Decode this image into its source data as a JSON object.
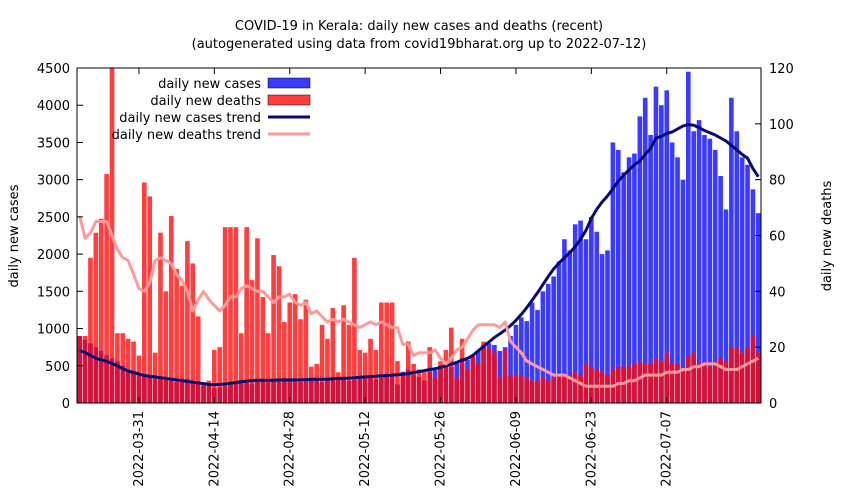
{
  "title_line1": "COVID-19 in Kerala: daily new cases and deaths (recent)",
  "title_line2": "(autogenerated using data from covid19bharat.org up to 2022-07-12)",
  "legend": {
    "cases": "daily new cases",
    "deaths": "daily new deaths",
    "cases_trend": "daily new cases trend",
    "deaths_trend": "daily new deaths trend"
  },
  "colors": {
    "cases_bar": "#3b3bff",
    "deaths_bar": "#ff3f3f",
    "overlap": "#d0143c",
    "cases_trend": "#0a0a6e",
    "deaths_trend": "#ff9a9a"
  },
  "chart_data": {
    "type": "bar",
    "title": "COVID-19 in Kerala: daily new cases and deaths (recent)",
    "subtitle": "(autogenerated using data from covid19bharat.org up to 2022-07-12)",
    "ylabel": "daily new cases",
    "y2label": "daily new deaths",
    "ylim": [
      0,
      4500
    ],
    "y2lim": [
      0,
      120
    ],
    "yticks": [
      0,
      500,
      1000,
      1500,
      2000,
      2500,
      3000,
      3500,
      4000,
      4500
    ],
    "y2ticks": [
      0,
      20,
      40,
      60,
      80,
      100,
      120
    ],
    "start_date": "2022-03-20",
    "xticks": [
      "2022-03-31",
      "2022-04-14",
      "2022-04-28",
      "2022-05-12",
      "2022-05-26",
      "2022-06-09",
      "2022-06-23",
      "2022-07-07"
    ],
    "legend_position": "top-left",
    "grid": false,
    "series": [
      {
        "name": "daily new cases",
        "axis": "left",
        "type": "bar",
        "values": [
          900,
          850,
          800,
          750,
          700,
          640,
          600,
          560,
          500,
          420,
          400,
          380,
          360,
          350,
          340,
          330,
          320,
          300,
          280,
          330,
          320,
          300,
          280,
          260,
          240,
          200,
          210,
          230,
          250,
          260,
          280,
          300,
          260,
          300,
          320,
          280,
          300,
          330,
          300,
          290,
          310,
          280,
          300,
          320,
          330,
          280,
          300,
          310,
          340,
          320,
          300,
          310,
          330,
          360,
          340,
          320,
          350,
          380,
          390,
          250,
          420,
          450,
          380,
          350,
          300,
          420,
          440,
          500,
          540,
          480,
          560,
          600,
          580,
          620,
          700,
          780,
          800,
          780,
          700,
          750,
          900,
          1050,
          1150,
          1100,
          1350,
          1250,
          1500,
          1600,
          1700,
          1900,
          2200,
          2050,
          2400,
          2450,
          2200,
          2500,
          2300,
          2000,
          2050,
          3500,
          3400,
          3100,
          3300,
          3350,
          3850,
          4100,
          3600,
          4250,
          4000,
          4200,
          3500,
          3300,
          3000,
          4450,
          3650,
          3800,
          3600,
          3550,
          3400,
          3050,
          2600,
          4100,
          3650,
          3300,
          3200,
          2870,
          2550
        ]
      },
      {
        "name": "daily new deaths",
        "axis": "right",
        "type": "bar",
        "values": [
          24,
          24,
          52,
          61,
          66,
          82,
          120,
          25,
          25,
          23,
          22,
          17,
          79,
          74,
          18,
          61,
          40,
          67,
          48,
          42,
          58,
          50,
          31,
          6,
          8,
          19,
          20,
          63,
          63,
          63,
          25,
          63,
          44,
          59,
          38,
          25,
          53,
          49,
          29,
          36,
          39,
          30,
          37,
          13,
          14,
          28,
          23,
          34,
          11,
          35,
          28,
          52,
          19,
          18,
          23,
          19,
          36,
          36,
          36,
          15,
          10,
          22,
          14,
          12,
          11,
          20,
          9,
          15,
          19,
          27,
          9,
          23,
          12,
          17,
          14,
          22,
          20,
          18,
          9,
          19,
          10,
          10,
          10,
          9,
          8,
          8,
          9,
          8,
          9,
          10,
          10,
          10,
          11,
          10,
          14,
          13,
          12,
          11,
          10,
          12,
          13,
          13,
          13,
          14,
          15,
          14,
          14,
          16,
          15,
          18,
          14,
          14,
          12,
          17,
          18,
          14,
          15,
          13,
          15,
          16,
          15,
          20,
          20,
          18,
          20,
          24,
          18
        ]
      },
      {
        "name": "daily new cases trend",
        "axis": "left",
        "type": "line",
        "values": [
          700,
          680,
          640,
          600,
          580,
          560,
          530,
          500,
          460,
          430,
          410,
          390,
          370,
          360,
          350,
          340,
          330,
          320,
          310,
          300,
          290,
          280,
          270,
          260,
          250,
          245,
          250,
          255,
          265,
          275,
          285,
          295,
          300,
          305,
          305,
          305,
          305,
          310,
          310,
          310,
          310,
          310,
          315,
          320,
          320,
          320,
          320,
          325,
          330,
          330,
          335,
          340,
          345,
          350,
          355,
          360,
          365,
          370,
          375,
          380,
          385,
          395,
          410,
          420,
          435,
          450,
          460,
          480,
          500,
          520,
          545,
          575,
          600,
          640,
          700,
          760,
          820,
          880,
          930,
          980,
          1040,
          1110,
          1190,
          1280,
          1380,
          1480,
          1590,
          1700,
          1800,
          1880,
          1950,
          2020,
          2100,
          2200,
          2320,
          2480,
          2600,
          2700,
          2780,
          2880,
          2980,
          3060,
          3130,
          3200,
          3250,
          3340,
          3420,
          3560,
          3580,
          3620,
          3640,
          3680,
          3720,
          3740,
          3730,
          3700,
          3660,
          3630,
          3600,
          3560,
          3520,
          3460,
          3400,
          3340,
          3290,
          3150,
          3040
        ]
      },
      {
        "name": "daily new deaths trend",
        "axis": "right",
        "type": "line",
        "values": [
          67,
          59,
          61,
          65,
          65,
          65,
          60,
          55,
          52,
          51,
          46,
          41,
          40,
          43,
          51,
          52,
          51,
          50,
          46,
          44,
          40,
          33,
          37,
          40,
          37,
          35,
          33,
          35,
          38,
          38,
          41,
          42,
          41,
          40,
          40,
          38,
          36,
          38,
          38,
          39,
          36,
          35,
          36,
          32,
          33,
          31,
          29,
          30,
          29,
          30,
          29,
          28,
          27,
          28,
          29,
          28,
          29,
          28,
          27,
          27,
          21,
          21,
          17,
          18,
          18,
          18,
          19,
          16,
          14,
          16,
          19,
          20,
          23,
          26,
          28,
          28,
          28,
          28,
          27,
          29,
          22,
          20,
          18,
          15,
          14,
          13,
          12,
          11,
          10,
          10,
          10,
          9,
          8,
          7,
          6,
          6,
          6,
          6,
          6,
          6,
          7,
          7,
          8,
          8,
          9,
          10,
          10,
          10,
          10,
          11,
          11,
          11,
          12,
          12,
          13,
          13,
          14,
          14,
          14,
          13,
          12,
          12,
          12,
          13,
          14,
          15,
          16
        ]
      }
    ]
  }
}
